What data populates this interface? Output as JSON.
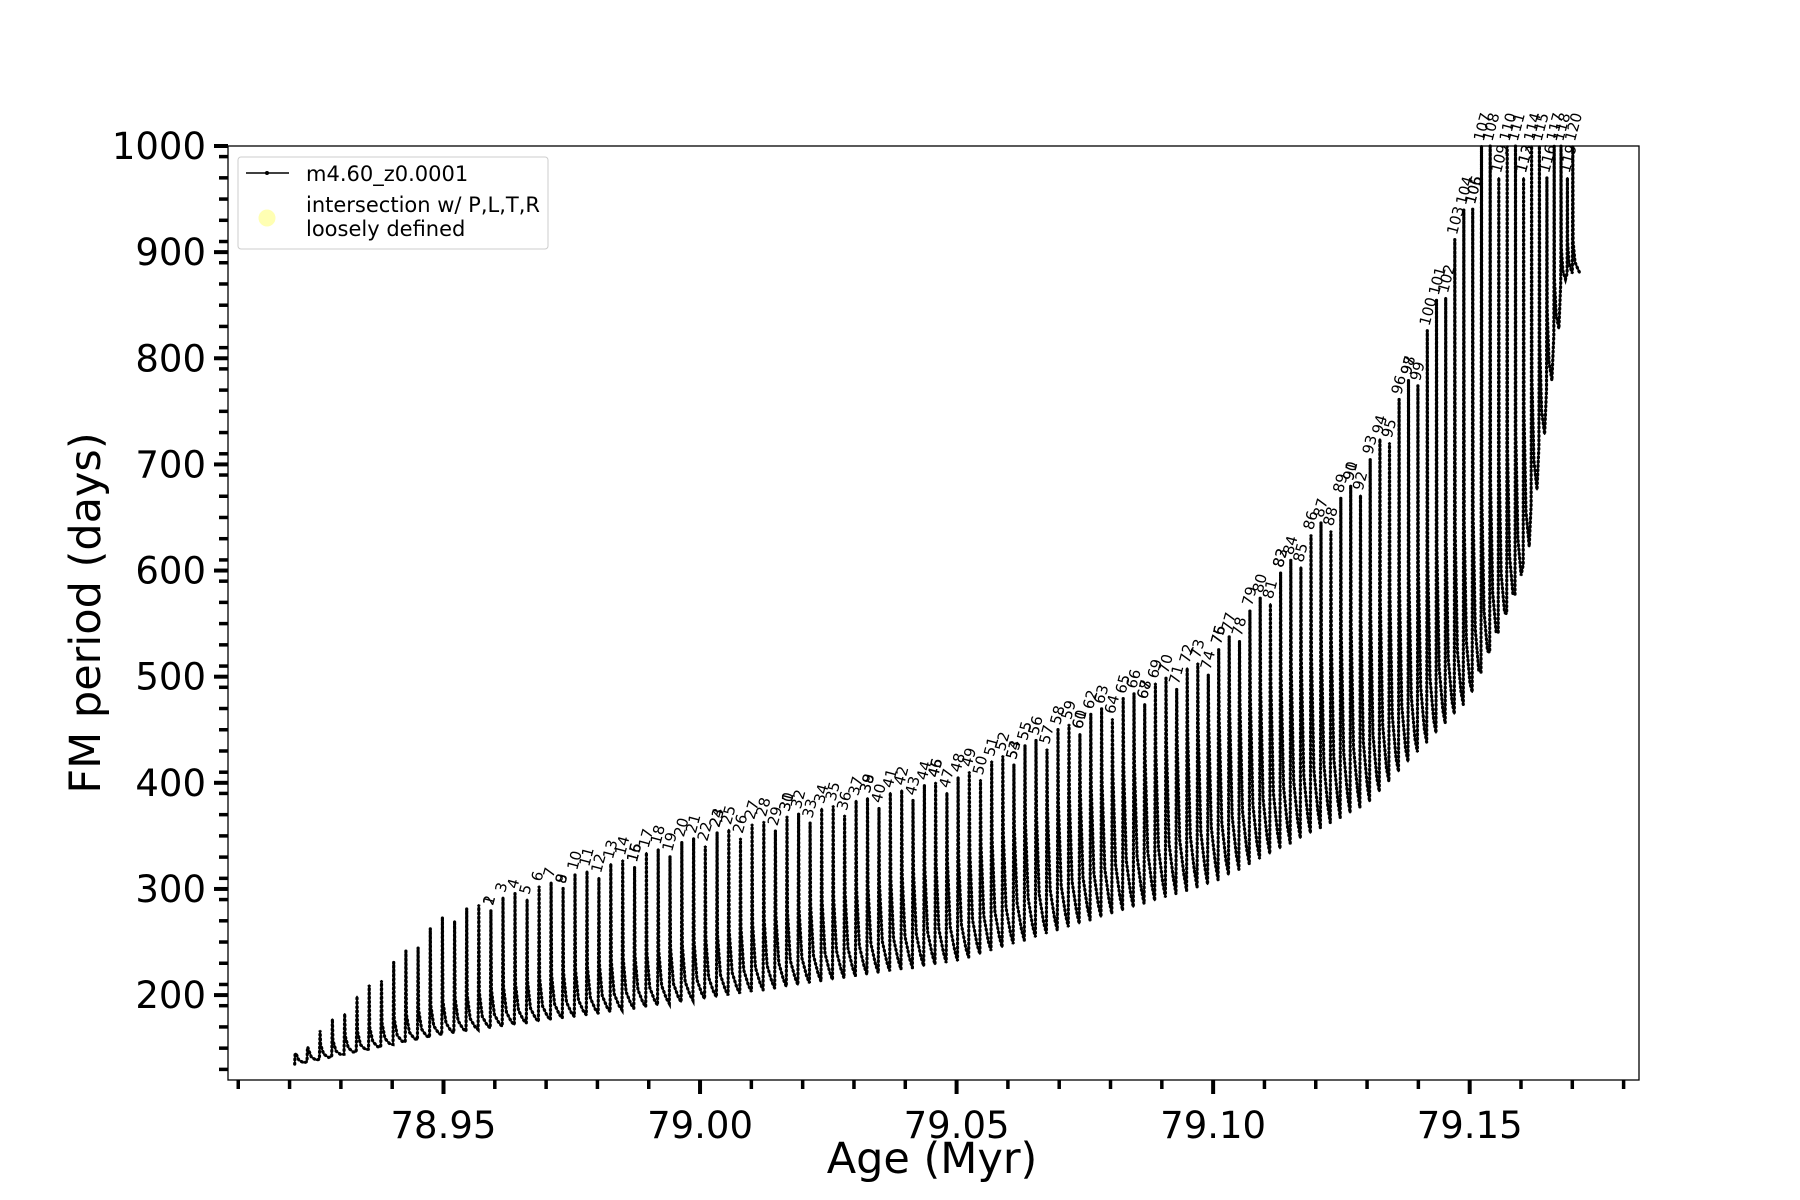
{
  "chart_data": {
    "type": "line",
    "title": "",
    "xlabel": "Age (Myr)",
    "ylabel": "FM period (days)",
    "xlim": [
      78.908,
      79.183
    ],
    "ylim": [
      120,
      1000
    ],
    "xticks": [
      78.95,
      79.0,
      79.05,
      79.1,
      79.15
    ],
    "xtick_labels": [
      "78.95",
      "79.00",
      "79.05",
      "79.10",
      "79.15"
    ],
    "yticks": [
      200,
      300,
      400,
      500,
      600,
      700,
      800,
      900,
      1000
    ],
    "ytick_labels": [
      "200",
      "300",
      "400",
      "500",
      "600",
      "700",
      "800",
      "900",
      "1000"
    ],
    "grid": false,
    "legend_position": "top-left",
    "legend": [
      {
        "label": "m4.60_z0.0001",
        "style": "line-with-dots",
        "color": "#000000"
      },
      {
        "label": "intersection w/ P,L,T,R\nloosely defined",
        "style": "marker",
        "color": "#ffffb3"
      }
    ],
    "series": [
      {
        "name": "m4.60_z0.0001",
        "color": "#000000",
        "description": "Saw-tooth track of repeated thermal pulses; each pulse spikes from a lower envelope up to an upper envelope.",
        "age_start": 78.921,
        "age_end": 79.17,
        "pulse_count": 120,
        "lower_envelope": [
          {
            "x": 78.921,
            "y": 135
          },
          {
            "x": 78.95,
            "y": 163
          },
          {
            "x": 79.0,
            "y": 196
          },
          {
            "x": 79.05,
            "y": 232
          },
          {
            "x": 79.1,
            "y": 306
          },
          {
            "x": 79.13,
            "y": 380
          },
          {
            "x": 79.15,
            "y": 480
          },
          {
            "x": 79.16,
            "y": 590
          },
          {
            "x": 79.168,
            "y": 880
          }
        ],
        "mid_envelope": [
          {
            "x": 78.921,
            "y": 145
          },
          {
            "x": 78.95,
            "y": 195
          },
          {
            "x": 79.0,
            "y": 252
          },
          {
            "x": 79.05,
            "y": 330
          },
          {
            "x": 79.1,
            "y": 460
          },
          {
            "x": 79.13,
            "y": 560
          },
          {
            "x": 79.15,
            "y": 650
          },
          {
            "x": 79.16,
            "y": 740
          },
          {
            "x": 79.168,
            "y": 910
          }
        ],
        "upper_envelope": [
          {
            "x": 78.921,
            "y": 145
          },
          {
            "x": 78.95,
            "y": 275
          },
          {
            "x": 79.0,
            "y": 350
          },
          {
            "x": 79.05,
            "y": 405
          },
          {
            "x": 79.1,
            "y": 520
          },
          {
            "x": 79.13,
            "y": 700
          },
          {
            "x": 79.14,
            "y": 800
          },
          {
            "x": 79.15,
            "y": 960
          },
          {
            "x": 79.152,
            "y": 1000
          }
        ]
      }
    ],
    "annotations": {
      "type": "pulse-number-labels",
      "rotation_deg": 75,
      "first": 1,
      "last": 120,
      "labels": [
        "1",
        "2",
        "3",
        "4",
        "5",
        "6",
        "7",
        "8",
        "9",
        "10",
        "11",
        "12",
        "13",
        "14",
        "15",
        "16",
        "17",
        "18",
        "19",
        "20",
        "21",
        "22",
        "23",
        "24",
        "25",
        "26",
        "27",
        "28",
        "29",
        "30",
        "31",
        "32",
        "33",
        "34",
        "35",
        "36",
        "37",
        "38",
        "39",
        "40",
        "41",
        "42",
        "43",
        "44",
        "45",
        "46",
        "47",
        "48",
        "49",
        "50",
        "51",
        "52",
        "53",
        "54",
        "55",
        "56",
        "57",
        "58",
        "59",
        "60",
        "61",
        "62",
        "63",
        "64",
        "65",
        "66",
        "67",
        "68",
        "69",
        "70",
        "71",
        "72",
        "73",
        "74",
        "75",
        "76",
        "77",
        "78",
        "79",
        "80",
        "81",
        "82",
        "83",
        "84",
        "85",
        "86",
        "87",
        "88",
        "89",
        "90",
        "91",
        "92",
        "93",
        "94",
        "95",
        "96",
        "97",
        "98",
        "99",
        "100",
        "101",
        "102",
        "103",
        "104",
        "105",
        "106",
        "107",
        "108",
        "109",
        "110",
        "111",
        "112",
        "113",
        "114",
        "115",
        "116",
        "117",
        "118",
        "119",
        "120"
      ]
    }
  }
}
